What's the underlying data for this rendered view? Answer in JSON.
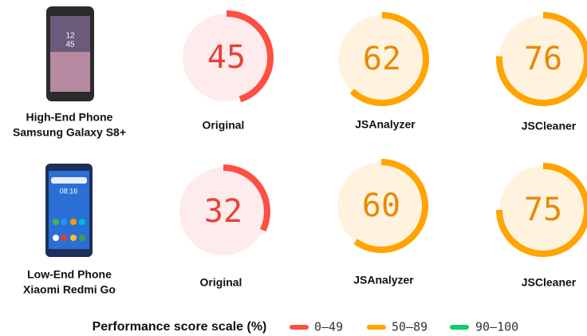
{
  "rows": [
    {
      "device": "High-End Phone",
      "model": "Samsung Galaxy S8+",
      "gauges": [
        {
          "label": "Original",
          "score": 45,
          "color": "#ff4e42"
        },
        {
          "label": "JSAnalyzer",
          "score": 62,
          "color": "#ffa400"
        },
        {
          "label": "JSCleaner",
          "score": 76,
          "color": "#ffa400"
        }
      ]
    },
    {
      "device": "Low-End Phone",
      "model": "Xiaomi Redmi Go",
      "gauges": [
        {
          "label": "Original",
          "score": 32,
          "color": "#ff4e42"
        },
        {
          "label": "JSAnalyzer",
          "score": 60,
          "color": "#ffa400"
        },
        {
          "label": "JSCleaner",
          "score": 75,
          "color": "#ffa400"
        }
      ]
    }
  ],
  "legend": {
    "title": "Performance score scale (%)",
    "items": [
      {
        "label": "0–49",
        "color": "#ff4e42"
      },
      {
        "label": "50–89",
        "color": "#ffa400"
      },
      {
        "label": "90–100",
        "color": "#0cce6b"
      }
    ]
  }
}
